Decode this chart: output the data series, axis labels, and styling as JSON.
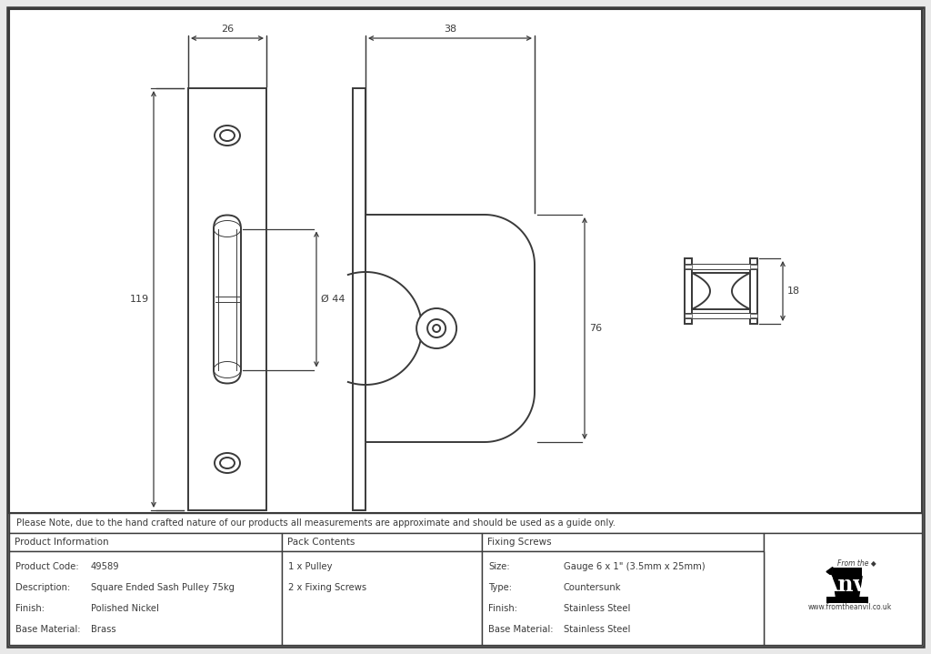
{
  "bg_color": "#e8e8e8",
  "drawing_bg": "#ffffff",
  "line_color": "#3a3a3a",
  "note": "Please Note, due to the hand crafted nature of our products all measurements are approximate and should be used as a guide only.",
  "product_info": {
    "header": "Product Information",
    "rows": [
      [
        "Product Code:",
        "49589"
      ],
      [
        "Description:",
        "Square Ended Sash Pulley 75kg"
      ],
      [
        "Finish:",
        "Polished Nickel"
      ],
      [
        "Base Material:",
        "Brass"
      ]
    ]
  },
  "pack_contents": {
    "header": "Pack Contents",
    "rows": [
      "1 x Pulley",
      "2 x Fixing Screws"
    ]
  },
  "fixing_screws": {
    "header": "Fixing Screws",
    "rows": [
      [
        "Size:",
        "Gauge 6 x 1\" (3.5mm x 25mm)"
      ],
      [
        "Type:",
        "Countersunk"
      ],
      [
        "Finish:",
        "Stainless Steel"
      ],
      [
        "Base Material:",
        "Stainless Steel"
      ]
    ]
  }
}
